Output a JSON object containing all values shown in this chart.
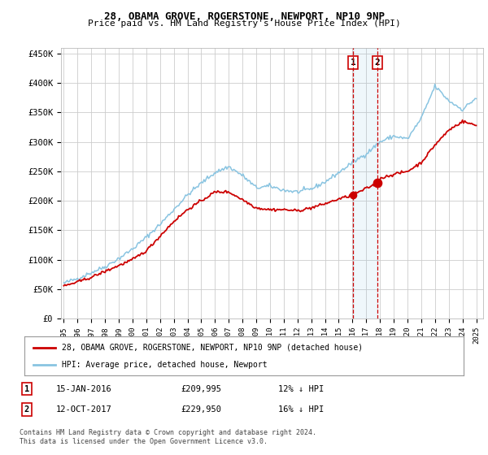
{
  "title": "28, OBAMA GROVE, ROGERSTONE, NEWPORT, NP10 9NP",
  "subtitle": "Price paid vs. HM Land Registry's House Price Index (HPI)",
  "legend_line1": "28, OBAMA GROVE, ROGERSTONE, NEWPORT, NP10 9NP (detached house)",
  "legend_line2": "HPI: Average price, detached house, Newport",
  "footnote": "Contains HM Land Registry data © Crown copyright and database right 2024.\nThis data is licensed under the Open Government Licence v3.0.",
  "sale1_date": "15-JAN-2016",
  "sale1_price": "£209,995",
  "sale1_hpi": "12% ↓ HPI",
  "sale2_date": "12-OCT-2017",
  "sale2_price": "£229,950",
  "sale2_hpi": "16% ↓ HPI",
  "hpi_color": "#89c4e1",
  "price_color": "#cc0000",
  "sale_dot_color": "#cc0000",
  "vline_color": "#cc0000",
  "sale1_x": 2016.04,
  "sale2_x": 2017.79,
  "sale1_y": 209995,
  "sale2_y": 229950,
  "ylim": [
    0,
    460000
  ],
  "xlim_start": 1994.8,
  "xlim_end": 2025.5,
  "yticks": [
    0,
    50000,
    100000,
    150000,
    200000,
    250000,
    300000,
    350000,
    400000,
    450000
  ],
  "ytick_labels": [
    "£0",
    "£50K",
    "£100K",
    "£150K",
    "£200K",
    "£250K",
    "£300K",
    "£350K",
    "£400K",
    "£450K"
  ],
  "xticks": [
    1995,
    1996,
    1997,
    1998,
    1999,
    2000,
    2001,
    2002,
    2003,
    2004,
    2005,
    2006,
    2007,
    2008,
    2009,
    2010,
    2011,
    2012,
    2013,
    2014,
    2015,
    2016,
    2017,
    2018,
    2019,
    2020,
    2021,
    2022,
    2023,
    2024,
    2025
  ],
  "background_color": "#ffffff",
  "grid_color": "#cccccc",
  "hpi_anchors_x": [
    1995,
    1996,
    1997,
    1998,
    1999,
    2000,
    2001,
    2002,
    2003,
    2004,
    2005,
    2006,
    2007,
    2008,
    2009,
    2010,
    2011,
    2012,
    2013,
    2014,
    2015,
    2016,
    2017,
    2018,
    2019,
    2020,
    2021,
    2022,
    2023,
    2024,
    2025
  ],
  "hpi_anchors_y": [
    60000,
    68000,
    78000,
    88000,
    102000,
    118000,
    138000,
    160000,
    185000,
    210000,
    230000,
    248000,
    258000,
    243000,
    222000,
    225000,
    218000,
    215000,
    220000,
    232000,
    248000,
    265000,
    280000,
    300000,
    310000,
    305000,
    340000,
    395000,
    370000,
    355000,
    375000
  ],
  "price_anchors_x": [
    1995,
    1996,
    1997,
    1998,
    1999,
    2000,
    2001,
    2002,
    2003,
    2004,
    2005,
    2006,
    2007,
    2008,
    2009,
    2010,
    2011,
    2012,
    2013,
    2014,
    2015,
    2016.04,
    2017.79,
    2018,
    2019,
    2020,
    2021,
    2022,
    2023,
    2024,
    2025
  ],
  "price_anchors_y": [
    55000,
    62000,
    70000,
    80000,
    90000,
    100000,
    115000,
    140000,
    165000,
    185000,
    200000,
    215000,
    215000,
    202000,
    188000,
    185000,
    185000,
    183000,
    188000,
    195000,
    203000,
    209995,
    229950,
    238000,
    245000,
    250000,
    265000,
    295000,
    320000,
    335000,
    328000
  ]
}
